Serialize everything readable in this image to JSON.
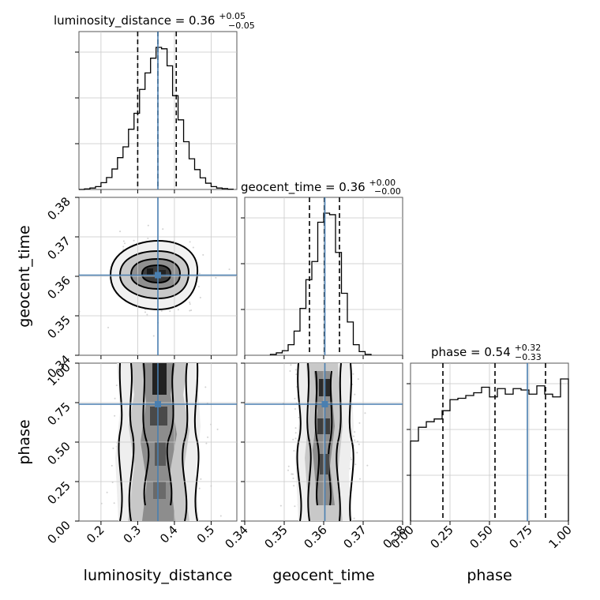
{
  "chart_data": {
    "type": "corner",
    "parameters": [
      {
        "name": "luminosity_distance",
        "xlabel": "luminosity_distance",
        "ylabel": "",
        "title_prefix": "luminosity_distance = 0.36",
        "title_sup": "+0.05",
        "title_sub": "−0.05",
        "range": [
          0.14,
          0.57
        ],
        "ticks": [
          0.2,
          0.3,
          0.4,
          0.5
        ],
        "tick_labels": [
          "0.2",
          "0.3",
          "0.4",
          "0.5"
        ],
        "truth": 0.355,
        "quantiles": [
          0.3,
          0.355,
          0.405
        ],
        "hist_x": [
          0.14,
          0.155,
          0.17,
          0.185,
          0.2,
          0.215,
          0.23,
          0.245,
          0.26,
          0.275,
          0.29,
          0.305,
          0.32,
          0.335,
          0.35,
          0.365,
          0.38,
          0.395,
          0.41,
          0.425,
          0.44,
          0.455,
          0.47,
          0.485,
          0.5,
          0.515,
          0.53,
          0.545
        ],
        "hist_counts": [
          0,
          2,
          5,
          10,
          24,
          42,
          72,
          112,
          150,
          212,
          268,
          352,
          410,
          462,
          500,
          495,
          435,
          330,
          245,
          168,
          108,
          70,
          41,
          22,
          10,
          5,
          3,
          1
        ]
      },
      {
        "name": "geocent_time",
        "xlabel": "geocent_time",
        "ylabel": "geocent_time",
        "title_prefix": "geocent_time = 0.36",
        "title_sup": "+0.00",
        "title_sub": "−0.00",
        "range": [
          0.34,
          0.38
        ],
        "ticks": [
          0.34,
          0.35,
          0.36,
          0.37,
          0.38
        ],
        "tick_labels": [
          "0.34",
          "0.35",
          "0.36",
          "0.37",
          "0.38"
        ],
        "truth": 0.3603,
        "quantiles": [
          0.3564,
          0.3602,
          0.364
        ],
        "hist_x": [
          0.3465,
          0.348,
          0.3495,
          0.351,
          0.3525,
          0.354,
          0.3555,
          0.357,
          0.3585,
          0.36,
          0.3615,
          0.363,
          0.3645,
          0.366,
          0.3675,
          0.369,
          0.3705
        ],
        "hist_counts": [
          3,
          8,
          15,
          35,
          80,
          155,
          250,
          310,
          440,
          470,
          465,
          340,
          205,
          110,
          35,
          12,
          3
        ]
      },
      {
        "name": "phase",
        "xlabel": "phase",
        "ylabel": "phase",
        "title_prefix": "phase = 0.54",
        "title_sup": "+0.32",
        "title_sub": "−0.33",
        "range": [
          0.0,
          1.0
        ],
        "ticks": [
          0.0,
          0.25,
          0.5,
          0.75,
          1.0
        ],
        "tick_labels": [
          "0.00",
          "0.25",
          "0.50",
          "0.75",
          "1.00"
        ],
        "truth": 0.74,
        "quantiles": [
          0.205,
          0.535,
          0.855
        ],
        "hist_x": [
          0.0,
          0.05,
          0.1,
          0.15,
          0.2,
          0.25,
          0.3,
          0.35,
          0.4,
          0.45,
          0.5,
          0.55,
          0.6,
          0.65,
          0.7,
          0.75,
          0.8,
          0.85,
          0.9,
          0.95
        ],
        "hist_counts": [
          290,
          340,
          360,
          370,
          400,
          440,
          445,
          455,
          465,
          485,
          450,
          480,
          460,
          480,
          475,
          460,
          490,
          460,
          450,
          515
        ]
      }
    ],
    "truths": [
      0.355,
      0.3603,
      0.74
    ],
    "truth_color": "#4a7fb0",
    "hist_color": "#000000",
    "grid": true,
    "legend": "none"
  }
}
